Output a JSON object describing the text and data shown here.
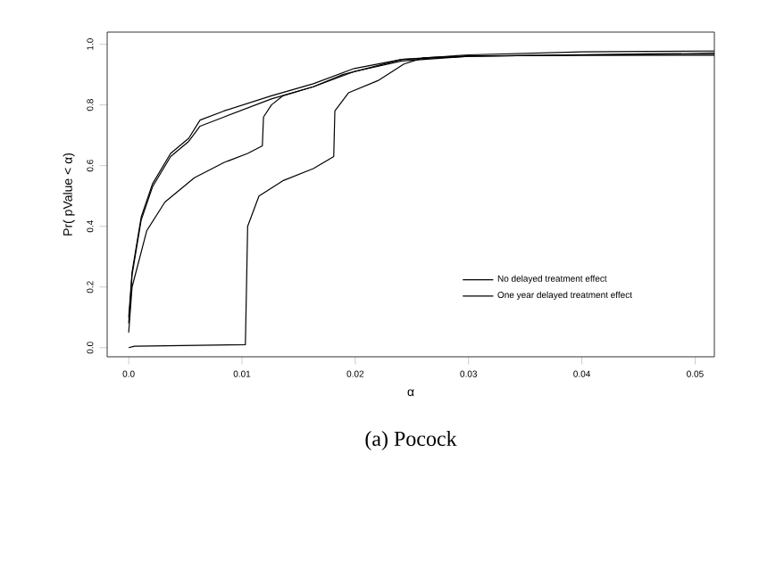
{
  "chart_data": {
    "type": "line",
    "xlabel": "α",
    "ylabel": "Pr( pValue < α)",
    "annotations": [
      "(a) Pocock"
    ],
    "xlim": [
      -0.0019,
      0.0517
    ],
    "ylim": [
      -0.03,
      1.04
    ],
    "xticks": [
      {
        "value": 0,
        "label": "0.0"
      },
      0.01,
      0.02,
      0.03,
      0.04,
      0.05
    ],
    "yticks": [
      {
        "value": 0,
        "label": "0.0"
      },
      0.2,
      0.4,
      0.6,
      0.8,
      {
        "value": 1,
        "label": "1.0"
      }
    ],
    "legend": "bottom right",
    "grid": false,
    "marker": "none",
    "line_style": "solid",
    "series": [
      {
        "name": "No delayed treatment effect",
        "color": "#000000",
        "x": [
          0,
          0.0003,
          0.0011,
          0.0021,
          0.0037,
          0.0053,
          0.0063,
          0.0084,
          0.0126,
          0.0163,
          0.0199,
          0.0241,
          0.03,
          0.04,
          0.0517
        ],
        "values": [
          0.1,
          0.25,
          0.43,
          0.54,
          0.64,
          0.69,
          0.75,
          0.78,
          0.83,
          0.87,
          0.92,
          0.95,
          0.965,
          0.975,
          0.978
        ]
      },
      {
        "name": "One year delayed treatment effect",
        "color": "#000000",
        "x": [
          0,
          0.0003,
          0.0011,
          0.0021,
          0.0037,
          0.0053,
          0.0063,
          0.0084,
          0.0126,
          0.0163,
          0.0199,
          0.0241,
          0.03,
          0.04,
          0.0517
        ],
        "values": [
          0.08,
          0.24,
          0.42,
          0.53,
          0.63,
          0.68,
          0.73,
          0.76,
          0.82,
          0.86,
          0.91,
          0.945,
          0.96,
          0.965,
          0.967
        ]
      },
      {
        "color": "#000000",
        "x": [
          0,
          0.0003,
          0.0016,
          0.0032,
          0.0058,
          0.0084,
          0.0105,
          0.0118,
          0.0119,
          0.0126,
          0.0136,
          0.0163,
          0.0189,
          0.0241,
          0.03,
          0.0517
        ],
        "values": [
          0.05,
          0.2,
          0.386,
          0.48,
          0.56,
          0.61,
          0.64,
          0.665,
          0.76,
          0.8,
          0.83,
          0.86,
          0.9,
          0.95,
          0.96,
          0.971
        ]
      },
      {
        "color": "#000000",
        "x": [
          0,
          0.0005,
          0.0103,
          0.0104,
          0.0105,
          0.0115,
          0.0136,
          0.0163,
          0.0181,
          0.0182,
          0.0194,
          0.022,
          0.0243,
          0.026,
          0.03,
          0.0517
        ],
        "values": [
          0,
          0.005,
          0.01,
          0.2,
          0.4,
          0.5,
          0.55,
          0.59,
          0.63,
          0.78,
          0.84,
          0.88,
          0.935,
          0.955,
          0.962,
          0.964
        ]
      }
    ]
  }
}
